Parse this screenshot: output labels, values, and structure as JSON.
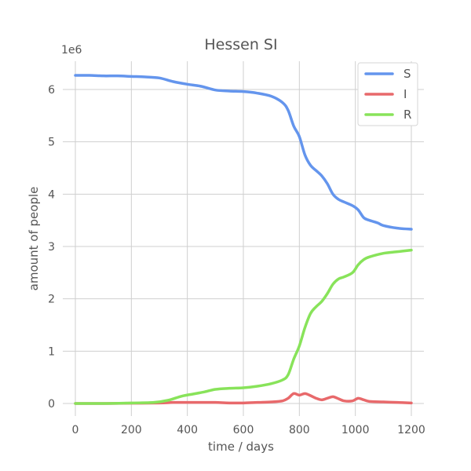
{
  "chart_data": {
    "type": "line",
    "title": "Hessen SI",
    "xlabel": "time / days",
    "ylabel": "amount of people",
    "y_offset_label": "1e6",
    "xlim": [
      0,
      1200
    ],
    "ylim": [
      0,
      6.3
    ],
    "y_scale_factor": 1000000,
    "grid": true,
    "legend_placement": "top-right",
    "x_ticks": [
      0,
      200,
      400,
      600,
      800,
      1000,
      1200
    ],
    "x_tick_labels": [
      "0",
      "200",
      "400",
      "600",
      "800",
      "1000",
      "1200"
    ],
    "y_ticks": [
      0,
      1,
      2,
      3,
      4,
      5,
      6
    ],
    "y_tick_labels": [
      "0",
      "1",
      "2",
      "3",
      "4",
      "5",
      "6"
    ],
    "series": [
      {
        "name": "S",
        "color": "#6495ed",
        "x": [
          0,
          50,
          100,
          150,
          200,
          250,
          300,
          350,
          400,
          450,
          500,
          550,
          600,
          650,
          700,
          740,
          760,
          780,
          800,
          820,
          840,
          860,
          880,
          900,
          920,
          940,
          960,
          990,
          1010,
          1030,
          1050,
          1080,
          1100,
          1150,
          1200
        ],
        "values": [
          6.27,
          6.27,
          6.26,
          6.26,
          6.25,
          6.24,
          6.22,
          6.15,
          6.1,
          6.06,
          5.99,
          5.97,
          5.96,
          5.93,
          5.87,
          5.75,
          5.6,
          5.3,
          5.1,
          4.75,
          4.55,
          4.45,
          4.35,
          4.2,
          4.0,
          3.9,
          3.85,
          3.78,
          3.7,
          3.55,
          3.5,
          3.45,
          3.4,
          3.35,
          3.33
        ]
      },
      {
        "name": "I",
        "color": "#e8696b",
        "x": [
          0,
          100,
          200,
          300,
          350,
          400,
          450,
          500,
          550,
          600,
          650,
          700,
          740,
          760,
          780,
          800,
          820,
          840,
          860,
          880,
          900,
          920,
          940,
          960,
          990,
          1010,
          1030,
          1050,
          1100,
          1150,
          1200
        ],
        "values": [
          0.0,
          0.0,
          0.005,
          0.01,
          0.02,
          0.02,
          0.02,
          0.02,
          0.01,
          0.01,
          0.02,
          0.03,
          0.05,
          0.1,
          0.19,
          0.16,
          0.19,
          0.15,
          0.1,
          0.07,
          0.1,
          0.13,
          0.09,
          0.05,
          0.05,
          0.1,
          0.07,
          0.04,
          0.03,
          0.02,
          0.01
        ]
      },
      {
        "name": "R",
        "color": "#88e35a",
        "x": [
          0,
          100,
          200,
          280,
          330,
          380,
          420,
          460,
          500,
          550,
          600,
          650,
          700,
          740,
          760,
          780,
          800,
          820,
          840,
          860,
          880,
          900,
          920,
          940,
          960,
          990,
          1010,
          1030,
          1050,
          1100,
          1150,
          1200
        ],
        "values": [
          0.0,
          0.0,
          0.01,
          0.02,
          0.06,
          0.14,
          0.18,
          0.22,
          0.27,
          0.29,
          0.3,
          0.33,
          0.38,
          0.45,
          0.55,
          0.85,
          1.1,
          1.45,
          1.72,
          1.85,
          1.95,
          2.1,
          2.28,
          2.38,
          2.42,
          2.5,
          2.65,
          2.75,
          2.8,
          2.87,
          2.9,
          2.93
        ]
      }
    ]
  }
}
